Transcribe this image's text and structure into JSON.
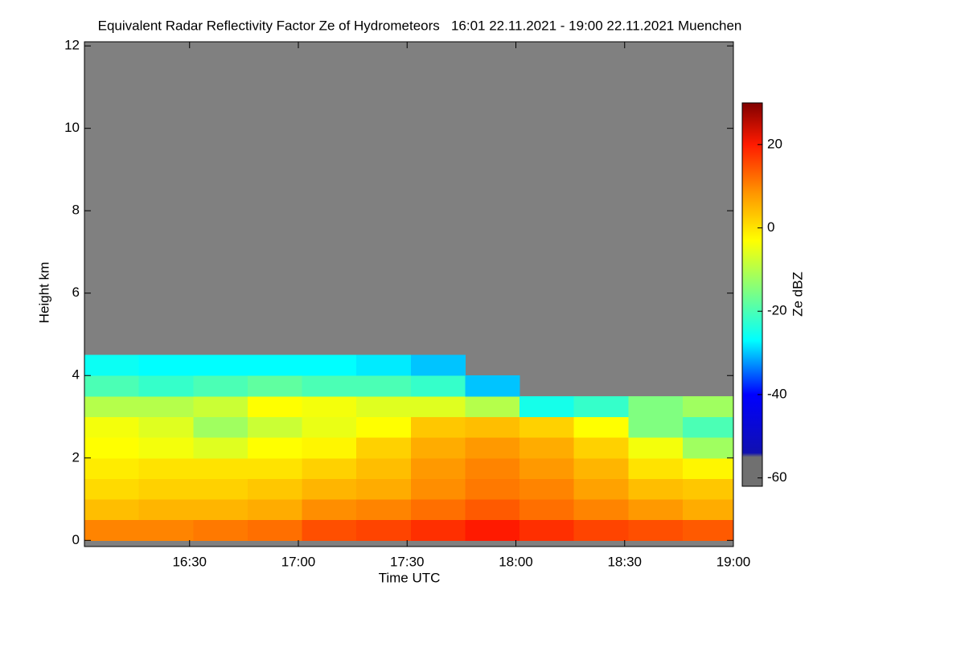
{
  "chart_data": {
    "type": "heatmap",
    "title": "Equivalent Radar Reflectivity Factor Ze of Hydrometeors   16:01 22.11.2021 - 19:00 22.11.2021 Muenchen",
    "x_label": "Time UTC",
    "y_label": "Height km",
    "colorbar_label": "Ze dBZ",
    "xlim": [
      961,
      1140
    ],
    "xticks": [
      {
        "value": 990,
        "label": "16:30"
      },
      {
        "value": 1020,
        "label": "17:00"
      },
      {
        "value": 1050,
        "label": "17:30"
      },
      {
        "value": 1080,
        "label": "18:00"
      },
      {
        "value": 1110,
        "label": "18:30"
      },
      {
        "value": 1140,
        "label": "19:00"
      }
    ],
    "ylim": [
      -0.15,
      12.1
    ],
    "yticks": [
      0,
      2,
      4,
      6,
      8,
      10,
      12
    ],
    "x_bins": [
      961,
      976,
      991,
      1006,
      1021,
      1036,
      1051,
      1066,
      1081,
      1096,
      1111,
      1126,
      1140
    ],
    "y_bins": [
      0,
      0.5,
      1,
      1.5,
      2,
      2.5,
      3,
      3.5,
      4,
      4.5
    ],
    "z": [
      [
        10,
        10,
        11,
        12,
        15,
        16,
        18,
        20,
        18,
        16,
        15,
        14
      ],
      [
        4,
        5,
        5,
        6,
        9,
        10,
        12,
        14,
        12,
        10,
        8,
        6
      ],
      [
        1,
        2,
        2,
        3,
        5,
        6,
        9,
        11,
        10,
        7,
        4,
        3
      ],
      [
        -1,
        0,
        0,
        0,
        2,
        4,
        8,
        10,
        8,
        5,
        0,
        -2
      ],
      [
        -3,
        -4,
        -6,
        -3,
        -2,
        2,
        6,
        8,
        6,
        2,
        -4,
        -12
      ],
      [
        -4,
        -6,
        -12,
        -8,
        -5,
        -3,
        3,
        4,
        2,
        -3,
        -15,
        -20
      ],
      [
        -10,
        -10,
        -8,
        -3,
        -4,
        -6,
        -6,
        -10,
        -25,
        -22,
        -15,
        -12
      ],
      [
        -20,
        -22,
        -20,
        -18,
        -20,
        -20,
        -22,
        -30,
        null,
        null,
        null,
        null
      ],
      [
        -26,
        -27,
        -27,
        -27,
        -27,
        -28,
        -30,
        null,
        null,
        null,
        null,
        null
      ]
    ],
    "background_color": "#808080",
    "clim": [
      -62,
      30
    ],
    "cticks": [
      -60,
      -40,
      -20,
      0,
      20
    ],
    "colorscale": [
      [
        -62,
        "#707070"
      ],
      [
        -55,
        "#707070"
      ],
      [
        -54,
        "#1010b0"
      ],
      [
        -40,
        "#0000ff"
      ],
      [
        -27,
        "#00ffff"
      ],
      [
        -15,
        "#80ff80"
      ],
      [
        -3,
        "#ffff00"
      ],
      [
        8,
        "#ff9900"
      ],
      [
        20,
        "#ff1a00"
      ],
      [
        30,
        "#800000"
      ]
    ]
  }
}
